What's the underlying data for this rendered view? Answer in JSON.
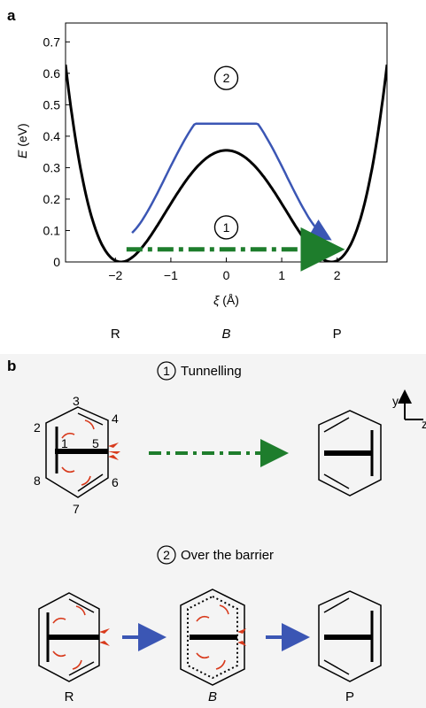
{
  "panel_a": {
    "label": "a",
    "chart_data": {
      "type": "line",
      "ylabel_var": "E",
      "ylabel_unit": "(eV)",
      "xlabel_var": "ξ",
      "xlabel_unit": "(Å)",
      "xlim": [
        -2.9,
        2.9
      ],
      "ylim": [
        0,
        0.76
      ],
      "xticks": [
        -2,
        -1,
        0,
        1,
        2
      ],
      "xtick_labels": [
        "−2",
        "−1",
        "0",
        "1",
        "2"
      ],
      "yticks": [
        0,
        0.1,
        0.2,
        0.3,
        0.4,
        0.5,
        0.6,
        0.7
      ],
      "ytick_labels": [
        "0",
        "0.1",
        "0.2",
        "0.3",
        "0.4",
        "0.5",
        "0.6",
        "0.7"
      ],
      "series": [
        {
          "color": "#000000",
          "x_min": 1.9,
          "barrier": 0.355,
          "x": [
            -2.9,
            -2.6,
            -2.3,
            -1.9,
            -1.5,
            -1.0,
            -0.5,
            0,
            0.5,
            1.0,
            1.5,
            1.9,
            2.3,
            2.6,
            2.9
          ],
          "y": [
            0.76,
            0.34,
            0.11,
            0.0,
            0.04,
            0.15,
            0.28,
            0.355,
            0.28,
            0.15,
            0.04,
            0.0,
            0.11,
            0.34,
            0.76
          ]
        }
      ],
      "annotations": [
        {
          "label": "1",
          "type": "tunnelling-arrow",
          "color": "#1e7d2c",
          "y": 0.04,
          "x_from": -1.8,
          "x_to": 1.9
        },
        {
          "label": "2",
          "type": "over-barrier-arrow",
          "color": "#3b56b4",
          "peak": 0.44,
          "x_from": -1.7,
          "x_to": 1.8
        }
      ],
      "below_axis_labels": [
        {
          "text": "R",
          "x": -2,
          "italic": false
        },
        {
          "text": "B",
          "x": 0,
          "italic": true
        },
        {
          "text": "P",
          "x": 2,
          "italic": false
        }
      ]
    }
  },
  "panel_b": {
    "label": "b",
    "route1_num": "1",
    "route1_label": "Tunnelling",
    "route2_num": "2",
    "route2_label": "Over the barrier",
    "axis_y": "y",
    "axis_z": "z",
    "atom_numbers": [
      "1",
      "2",
      "3",
      "4",
      "5",
      "6",
      "7",
      "8"
    ],
    "bottom_labels": {
      "R": "R",
      "B": "B",
      "P": "P"
    },
    "colors": {
      "tunnelling": "#1e7d2c",
      "over_barrier": "#3b56b4",
      "curly_arrows": "#d83a1c"
    }
  }
}
